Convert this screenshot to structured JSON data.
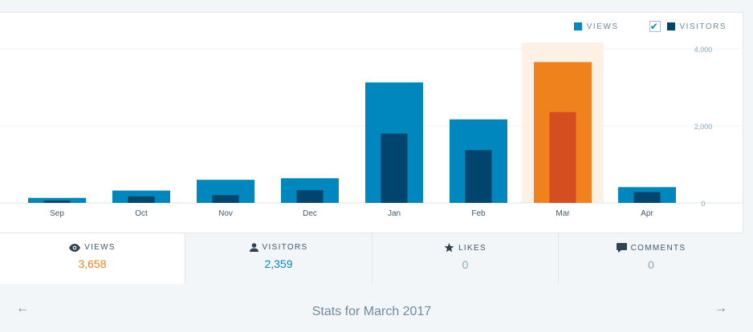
{
  "legend": {
    "views": "VIEWS",
    "visitors": "VISITORS"
  },
  "colors": {
    "views": "#0087be",
    "visitors": "#00456d",
    "highlight_views": "#f0821e",
    "highlight_visitors": "#d54e21",
    "highlight_bg": "#fdf0e4"
  },
  "chart_data": {
    "type": "bar",
    "categories": [
      "Sep",
      "Oct",
      "Nov",
      "Dec",
      "Jan",
      "Feb",
      "Mar",
      "Apr"
    ],
    "series": [
      {
        "name": "VIEWS",
        "values": [
          130,
          320,
          600,
          640,
          3130,
          2170,
          3658,
          410
        ]
      },
      {
        "name": "VISITORS",
        "values": [
          60,
          170,
          200,
          330,
          1800,
          1370,
          2359,
          280
        ]
      }
    ],
    "highlight_category": "Mar",
    "y_ticks": [
      "4,000",
      "2,000",
      "0"
    ],
    "ylim": [
      0,
      4000
    ],
    "grid": true,
    "legend_position": "top-right"
  },
  "tabs": [
    {
      "label": "VIEWS",
      "value": "3,658",
      "icon": "eye-icon"
    },
    {
      "label": "VISITORS",
      "value": "2,359",
      "icon": "person-icon"
    },
    {
      "label": "LIKES",
      "value": "0",
      "icon": "star-icon"
    },
    {
      "label": "COMMENTS",
      "value": "0",
      "icon": "comment-icon"
    }
  ],
  "footer": {
    "title": "Stats for March 2017",
    "prev": "←",
    "next": "→"
  }
}
